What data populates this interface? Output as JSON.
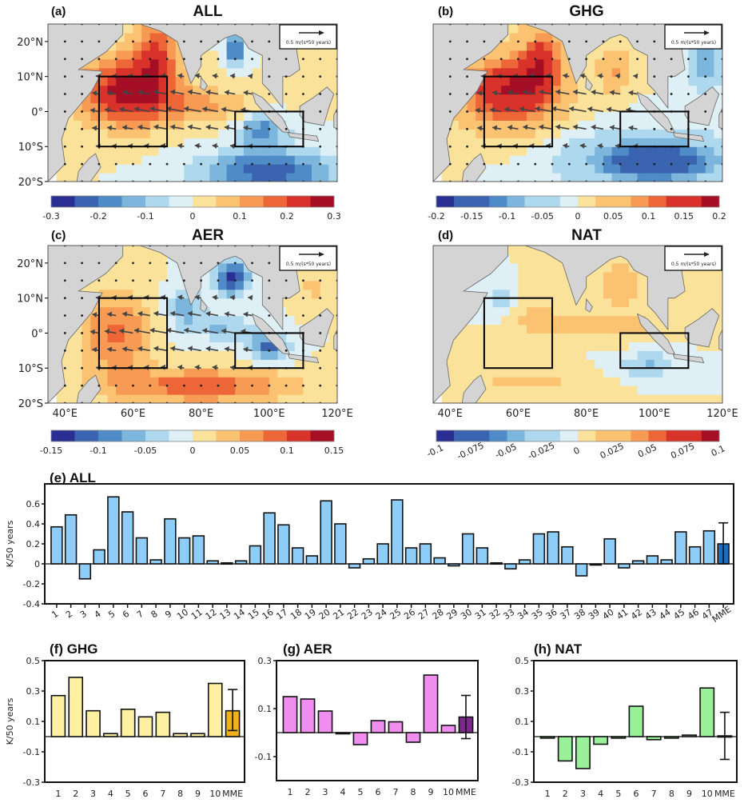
{
  "chart_data": [
    {
      "id": "a",
      "type": "heatmap",
      "panel_label": "(a)",
      "title": "ALL",
      "map": {
        "lat_ticks": [
          "20°N",
          "10°N",
          "0°",
          "10°S",
          "20°S"
        ],
        "lon_ticks": [],
        "lon_range_degE": [
          35,
          120
        ],
        "lat_range_deg": [
          -20,
          25
        ],
        "boxes": [
          {
            "lon": [
              50,
              70
            ],
            "lat": [
              -10,
              10
            ]
          },
          {
            "lon": [
              90,
              110
            ],
            "lat": [
              -10,
              0
            ]
          }
        ],
        "vector_reference": "0.5 m/(s*50 years)"
      },
      "colorbar": {
        "range": [
          -0.3,
          0.3
        ],
        "ticks": [
          "-0.3",
          "-0.2",
          "-0.1",
          "0",
          "0.1",
          "0.2",
          "0.3"
        ],
        "levels": 12
      }
    },
    {
      "id": "b",
      "type": "heatmap",
      "panel_label": "(b)",
      "title": "GHG",
      "map": {
        "lat_ticks": [],
        "lon_ticks": [],
        "lon_range_degE": [
          35,
          120
        ],
        "lat_range_deg": [
          -20,
          25
        ],
        "boxes": [
          {
            "lon": [
              50,
              70
            ],
            "lat": [
              -10,
              10
            ]
          },
          {
            "lon": [
              90,
              110
            ],
            "lat": [
              -10,
              0
            ]
          }
        ],
        "vector_reference": "0.5 m/(s*50 years)"
      },
      "colorbar": {
        "range": [
          -0.2,
          0.2
        ],
        "ticks": [
          "-0.2",
          "-0.15",
          "-0.1",
          "-0.05",
          "0",
          "0.05",
          "0.1",
          "0.15",
          "0.2"
        ],
        "levels": 16
      }
    },
    {
      "id": "c",
      "type": "heatmap",
      "panel_label": "(c)",
      "title": "AER",
      "map": {
        "lat_ticks": [
          "20°N",
          "10°N",
          "0°",
          "10°S",
          "20°S"
        ],
        "lon_ticks": [
          "40°E",
          "60°E",
          "80°E",
          "100°E",
          "120°E"
        ],
        "lon_range_degE": [
          35,
          120
        ],
        "lat_range_deg": [
          -20,
          25
        ],
        "boxes": [
          {
            "lon": [
              50,
              70
            ],
            "lat": [
              -10,
              10
            ]
          },
          {
            "lon": [
              90,
              110
            ],
            "lat": [
              -10,
              0
            ]
          }
        ],
        "vector_reference": "0.5 m/(s*50 years)"
      },
      "colorbar": {
        "range": [
          -0.15,
          0.15
        ],
        "ticks": [
          "-0.15",
          "-0.1",
          "-0.05",
          "0",
          "0.05",
          "0.1",
          "0.15"
        ],
        "levels": 12
      }
    },
    {
      "id": "d",
      "type": "heatmap",
      "panel_label": "(d)",
      "title": "NAT",
      "map": {
        "lat_ticks": [],
        "lon_ticks": [
          "40°E",
          "60°E",
          "80°E",
          "100°E",
          "120°E"
        ],
        "lon_range_degE": [
          35,
          120
        ],
        "lat_range_deg": [
          -20,
          25
        ],
        "boxes": [
          {
            "lon": [
              50,
              70
            ],
            "lat": [
              -10,
              10
            ]
          },
          {
            "lon": [
              90,
              110
            ],
            "lat": [
              -10,
              0
            ]
          }
        ],
        "vector_reference": "0.5 m/(s*50 years)"
      },
      "colorbar": {
        "range": [
          -0.1,
          0.1
        ],
        "ticks": [
          "-0.1",
          "-0.075",
          "-0.05",
          "-0.025",
          "0",
          "0.025",
          "0.05",
          "0.075",
          "0.1"
        ],
        "levels": 16
      }
    },
    {
      "id": "e",
      "type": "bar",
      "title": "(e) ALL",
      "ylabel": "K/50 years",
      "xlabel": "",
      "ylim": [
        -0.4,
        0.8
      ],
      "yticks": [
        -0.4,
        -0.2,
        0,
        0.2,
        0.4,
        0.6
      ],
      "ytick_labels": [
        "-0.4",
        "-0.2",
        "0",
        "0.2",
        "0.4",
        "0.6"
      ],
      "categories": [
        "1",
        "2",
        "3",
        "4",
        "5",
        "6",
        "7",
        "8",
        "9",
        "10",
        "11",
        "12",
        "13",
        "14",
        "15",
        "16",
        "17",
        "18",
        "19",
        "20",
        "21",
        "22",
        "23",
        "24",
        "25",
        "26",
        "27",
        "28",
        "29",
        "30",
        "31",
        "32",
        "33",
        "34",
        "35",
        "36",
        "37",
        "38",
        "39",
        "40",
        "41",
        "42",
        "43",
        "44",
        "45",
        "46",
        "47",
        "MME"
      ],
      "values": [
        0.37,
        0.49,
        -0.15,
        0.14,
        0.67,
        0.52,
        0.26,
        0.04,
        0.45,
        0.26,
        0.28,
        0.03,
        0.01,
        0.03,
        0.18,
        0.51,
        0.39,
        0.16,
        0.08,
        0.63,
        0.4,
        -0.04,
        0.05,
        0.2,
        0.64,
        0.16,
        0.2,
        0.06,
        -0.02,
        0.3,
        0.16,
        0.01,
        -0.05,
        0.04,
        0.3,
        0.32,
        0.17,
        -0.12,
        -0.01,
        0.25,
        -0.04,
        0.03,
        0.08,
        0.04,
        0.32,
        0.17,
        0.33,
        0.2
      ],
      "mme_error": [
        0.0,
        0.41
      ],
      "bar_color": "#8ecdf8",
      "mme_color": "#1c6fc0"
    },
    {
      "id": "f",
      "type": "bar",
      "title": "(f) GHG",
      "ylabel": "K/50 years",
      "xlabel": "",
      "ylim": [
        -0.3,
        0.5
      ],
      "yticks": [
        -0.3,
        -0.1,
        0.1,
        0.3,
        0.5
      ],
      "ytick_labels": [
        "-0.3",
        "-0.1",
        "0.1",
        "0.3",
        "0.5"
      ],
      "categories": [
        "1",
        "2",
        "3",
        "4",
        "5",
        "6",
        "7",
        "8",
        "9",
        "10",
        "MME"
      ],
      "values": [
        0.27,
        0.39,
        0.17,
        0.02,
        0.18,
        0.13,
        0.16,
        0.02,
        0.02,
        0.35,
        0.17
      ],
      "mme_error": [
        0.04,
        0.31
      ],
      "bar_color": "#fdf0a0",
      "mme_color": "#f2b01e"
    },
    {
      "id": "g",
      "type": "bar",
      "title": "(g) AER",
      "ylabel": "",
      "xlabel": "",
      "ylim": [
        -0.2,
        0.3
      ],
      "yticks": [
        -0.1,
        0.1,
        0.3
      ],
      "ytick_labels": [
        "-0.1",
        "0.1",
        "0.3"
      ],
      "categories": [
        "1",
        "2",
        "3",
        "4",
        "5",
        "6",
        "7",
        "8",
        "9",
        "10",
        "MME"
      ],
      "values": [
        0.15,
        0.14,
        0.09,
        0.0,
        -0.05,
        0.05,
        0.045,
        -0.04,
        0.24,
        0.03,
        0.065
      ],
      "mme_error": [
        -0.025,
        0.155
      ],
      "bar_color": "#f08ef0",
      "mme_color": "#7b2a8c"
    },
    {
      "id": "h",
      "type": "bar",
      "title": "(h) NAT",
      "ylabel": "",
      "xlabel": "",
      "ylim": [
        -0.3,
        0.5
      ],
      "yticks": [
        -0.3,
        -0.1,
        0.1,
        0.3,
        0.5
      ],
      "ytick_labels": [
        "-0.3",
        "-0.1",
        "0.1",
        "0.3",
        "0.5"
      ],
      "categories": [
        "1",
        "2",
        "3",
        "4",
        "5",
        "6",
        "7",
        "8",
        "9",
        "10",
        "MME"
      ],
      "values": [
        -0.01,
        -0.16,
        -0.21,
        -0.05,
        -0.01,
        0.2,
        -0.02,
        -0.01,
        0.01,
        0.32,
        0.005
      ],
      "mme_error": [
        -0.15,
        0.16
      ],
      "bar_color": "#99f099",
      "mme_color": "#3fa83f"
    }
  ]
}
